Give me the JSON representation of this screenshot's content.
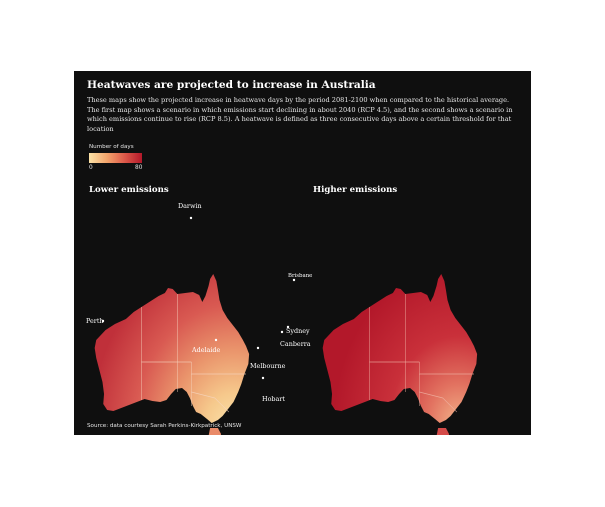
{
  "title": "Heatwaves are projected to increase in Australia",
  "subtitle": "These maps show the projected increase in heatwave days by the period 2081-2100 when compared to the historical average. The first map shows a scenario in which emissions start declining in about 2040 (RCP 4.5), and the second shows a scenario in which emissions continue to rise (RCP 8.5). A heatwave is defined as three consecutive days above a certain threshold for that location",
  "legend": {
    "title": "Number of days",
    "min": "0",
    "max": "80",
    "color_scale": [
      "#fbe2a6",
      "#f3a56c",
      "#dd5a4a",
      "#b3182a"
    ]
  },
  "maps": {
    "lower": {
      "title": "Lower emissions"
    },
    "higher": {
      "title": "Higher emissions"
    }
  },
  "cities": {
    "darwin": "Darwin",
    "brisbane": "Brisbane",
    "perth": "Perth",
    "sydney": "Sydney",
    "canberra": "Canberra",
    "adelaide": "Adelaide",
    "melbourne": "Melbourne",
    "hobart": "Hobart"
  },
  "source": "Source: data courtesy Sarah Perkins-Kirkpatrick, UNSW"
}
